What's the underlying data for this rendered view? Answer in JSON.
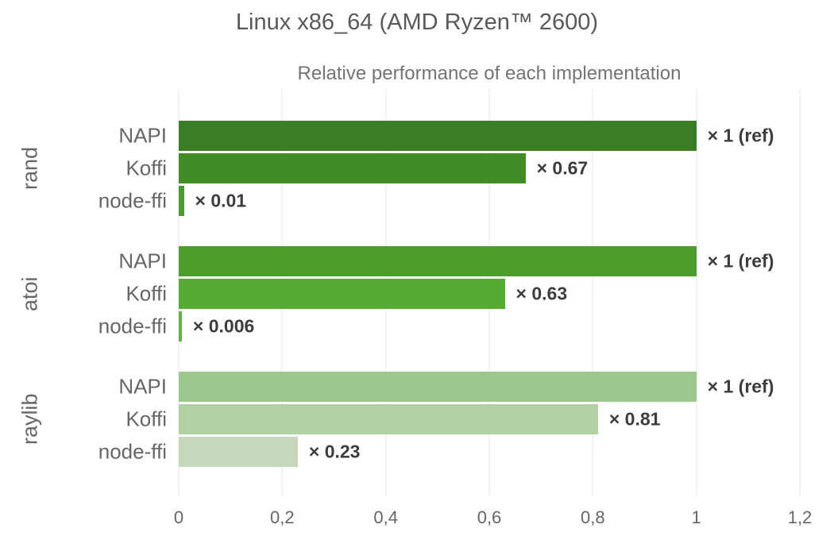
{
  "chart_data": {
    "type": "bar",
    "orientation": "horizontal",
    "title": "Linux x86_64 (AMD Ryzen™ 2600)",
    "subtitle": "Relative performance of each implementation",
    "xlim": [
      0,
      1.2
    ],
    "x_ticks": [
      {
        "value": 0,
        "label": "0"
      },
      {
        "value": 0.2,
        "label": "0,2"
      },
      {
        "value": 0.4,
        "label": "0,4"
      },
      {
        "value": 0.6,
        "label": "0,6"
      },
      {
        "value": 0.8,
        "label": "0,8"
      },
      {
        "value": 1,
        "label": "1"
      },
      {
        "value": 1.2,
        "label": "1,2"
      }
    ],
    "grid": true,
    "legend": false,
    "groups": [
      {
        "label": "rand",
        "bars": [
          {
            "label": "NAPI",
            "value": 1,
            "value_label": "× 1 (ref)",
            "color": "#3a7d22"
          },
          {
            "label": "Koffi",
            "value": 0.67,
            "value_label": "× 0.67",
            "color": "#428c25"
          },
          {
            "label": "node-ffi",
            "value": 0.01,
            "value_label": "× 0.01",
            "color": "#4a9b2f"
          }
        ]
      },
      {
        "label": "atoi",
        "bars": [
          {
            "label": "NAPI",
            "value": 1,
            "value_label": "× 1 (ref)",
            "color": "#4c9e2c"
          },
          {
            "label": "Koffi",
            "value": 0.63,
            "value_label": "× 0.63",
            "color": "#55ab33"
          },
          {
            "label": "node-ffi",
            "value": 0.006,
            "value_label": "× 0.006",
            "color": "#63b246"
          }
        ]
      },
      {
        "label": "raylib",
        "bars": [
          {
            "label": "NAPI",
            "value": 1,
            "value_label": "× 1 (ref)",
            "color": "#9cc78e"
          },
          {
            "label": "Koffi",
            "value": 0.81,
            "value_label": "× 0.81",
            "color": "#afd1a3"
          },
          {
            "label": "node-ffi",
            "value": 0.23,
            "value_label": "× 0.23",
            "color": "#c5d8bc"
          }
        ]
      }
    ],
    "colors": {
      "title_text": "#595959",
      "subtitle_text": "#737373",
      "axis_text": "#666666",
      "value_label_text": "#3d3d3d",
      "gridline": "#e7e7e7",
      "background": "#ffffff"
    }
  }
}
